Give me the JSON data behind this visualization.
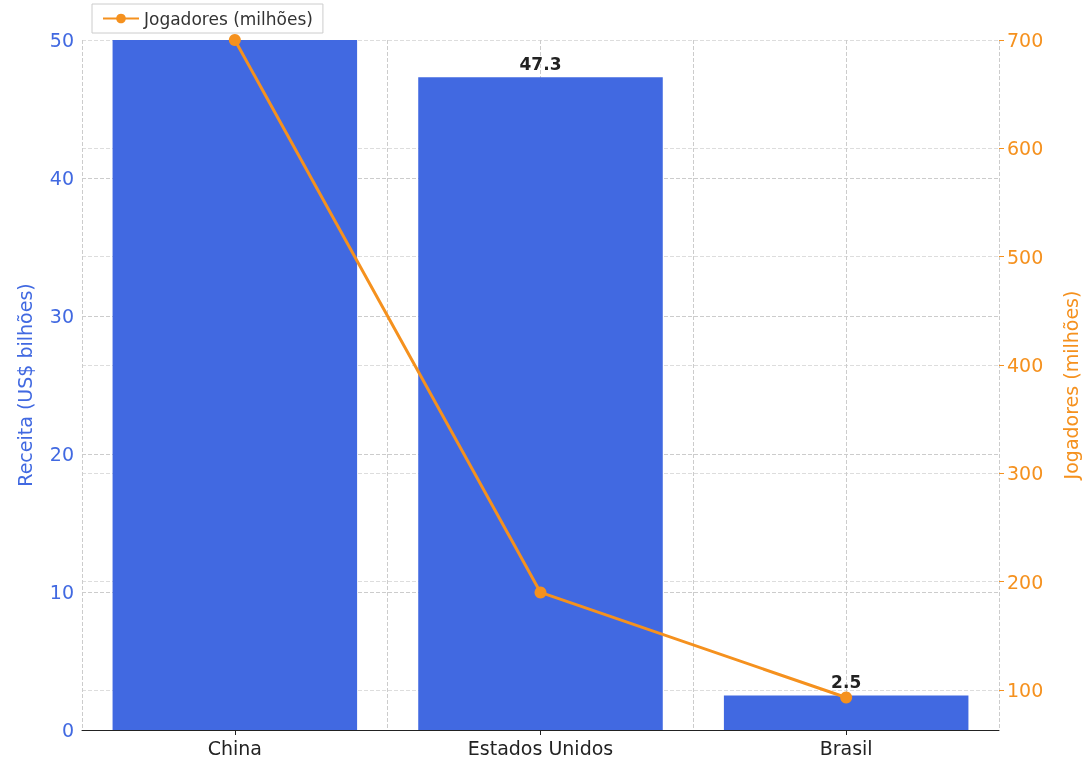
{
  "chart_data": {
    "type": "bar",
    "categories": [
      "China",
      "Estados Unidos",
      "Brasil"
    ],
    "ylabel": "Receita (US$ bilhões)",
    "y2label": "Jogadores (milhões)",
    "series": [
      {
        "color": "#4169e1",
        "values": [
          50,
          47.3,
          2.5
        ],
        "value_labels": [
          null,
          "47.3",
          "2.5"
        ]
      },
      {
        "type": "line",
        "name": "Jogadores (milhões)",
        "axis": "y2",
        "color": "#f5911e",
        "values": [
          700,
          190,
          93
        ],
        "marker": "circle"
      }
    ],
    "ylim": [
      0,
      50
    ],
    "yticks": [
      0,
      10,
      20,
      30,
      40,
      50
    ],
    "y2lim": [
      63,
      700
    ],
    "y2ticks": [
      100,
      200,
      300,
      400,
      500,
      600,
      700
    ],
    "grid": true,
    "legend": "top left"
  }
}
